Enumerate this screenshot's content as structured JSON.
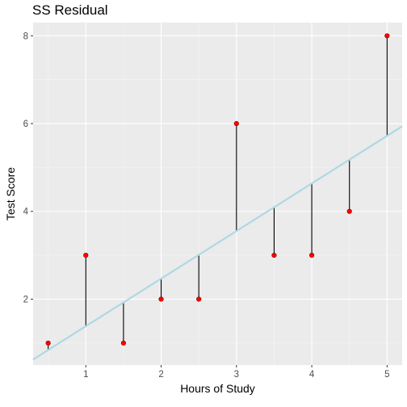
{
  "chart_data": {
    "type": "scatter",
    "title": "SS Residual",
    "xlabel": "Hours of Study",
    "ylabel": "Test Score",
    "xlim": [
      0.3,
      5.2
    ],
    "ylim": [
      0.5,
      8.3
    ],
    "x_ticks": [
      1,
      2,
      3,
      4,
      5
    ],
    "x_tick_labels": [
      "1",
      "2",
      "3",
      "4",
      "5"
    ],
    "y_ticks": [
      2,
      4,
      6,
      8
    ],
    "y_tick_labels": [
      "2",
      "4",
      "6",
      "8"
    ],
    "points": [
      {
        "x": 0.5,
        "y": 1
      },
      {
        "x": 1.0,
        "y": 3
      },
      {
        "x": 1.5,
        "y": 1
      },
      {
        "x": 2.0,
        "y": 2
      },
      {
        "x": 2.5,
        "y": 2
      },
      {
        "x": 3.0,
        "y": 6
      },
      {
        "x": 3.5,
        "y": 3
      },
      {
        "x": 4.0,
        "y": 3
      },
      {
        "x": 4.5,
        "y": 4
      },
      {
        "x": 5.0,
        "y": 8
      }
    ],
    "regression_line": {
      "intercept": 0.3,
      "slope": 1.084
    },
    "residual_segments": true,
    "grid": true,
    "legend": "none",
    "colors": {
      "panel_background": "#ebebeb",
      "grid_major": "#ffffff",
      "grid_minor": "#f5f5f5",
      "points": "#ff0000",
      "point_outline": "#8b0000",
      "regression_line": "#add8e6",
      "residuals": "#000000"
    }
  }
}
